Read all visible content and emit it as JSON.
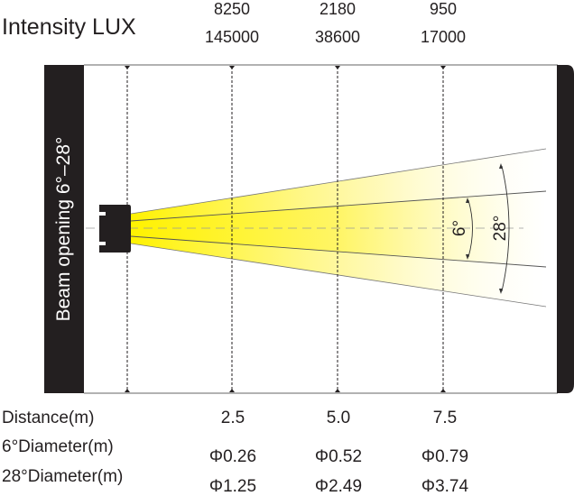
{
  "header": {
    "intensity_label": "Intensity LUX"
  },
  "lux_rows": [
    [
      "8250",
      "2180",
      "950"
    ],
    [
      "145000",
      "38600",
      "17000"
    ]
  ],
  "beam_label": "Beam opening 6°–28°",
  "angles": {
    "narrow": "6°",
    "wide": "28°"
  },
  "table": {
    "rows": [
      {
        "label": "Distance(m)",
        "values": [
          "2.5",
          "5.0",
          "7.5"
        ]
      },
      {
        "label": "6°Diameter(m)",
        "values": [
          "Φ0.26",
          "Φ0.52",
          "Φ0.79"
        ]
      },
      {
        "label": "28°Diameter(m)",
        "values": [
          "Φ1.25",
          "Φ2.49",
          "Φ3.74"
        ]
      }
    ]
  },
  "colors": {
    "beam": "#fff200",
    "dark": "#231f20"
  }
}
